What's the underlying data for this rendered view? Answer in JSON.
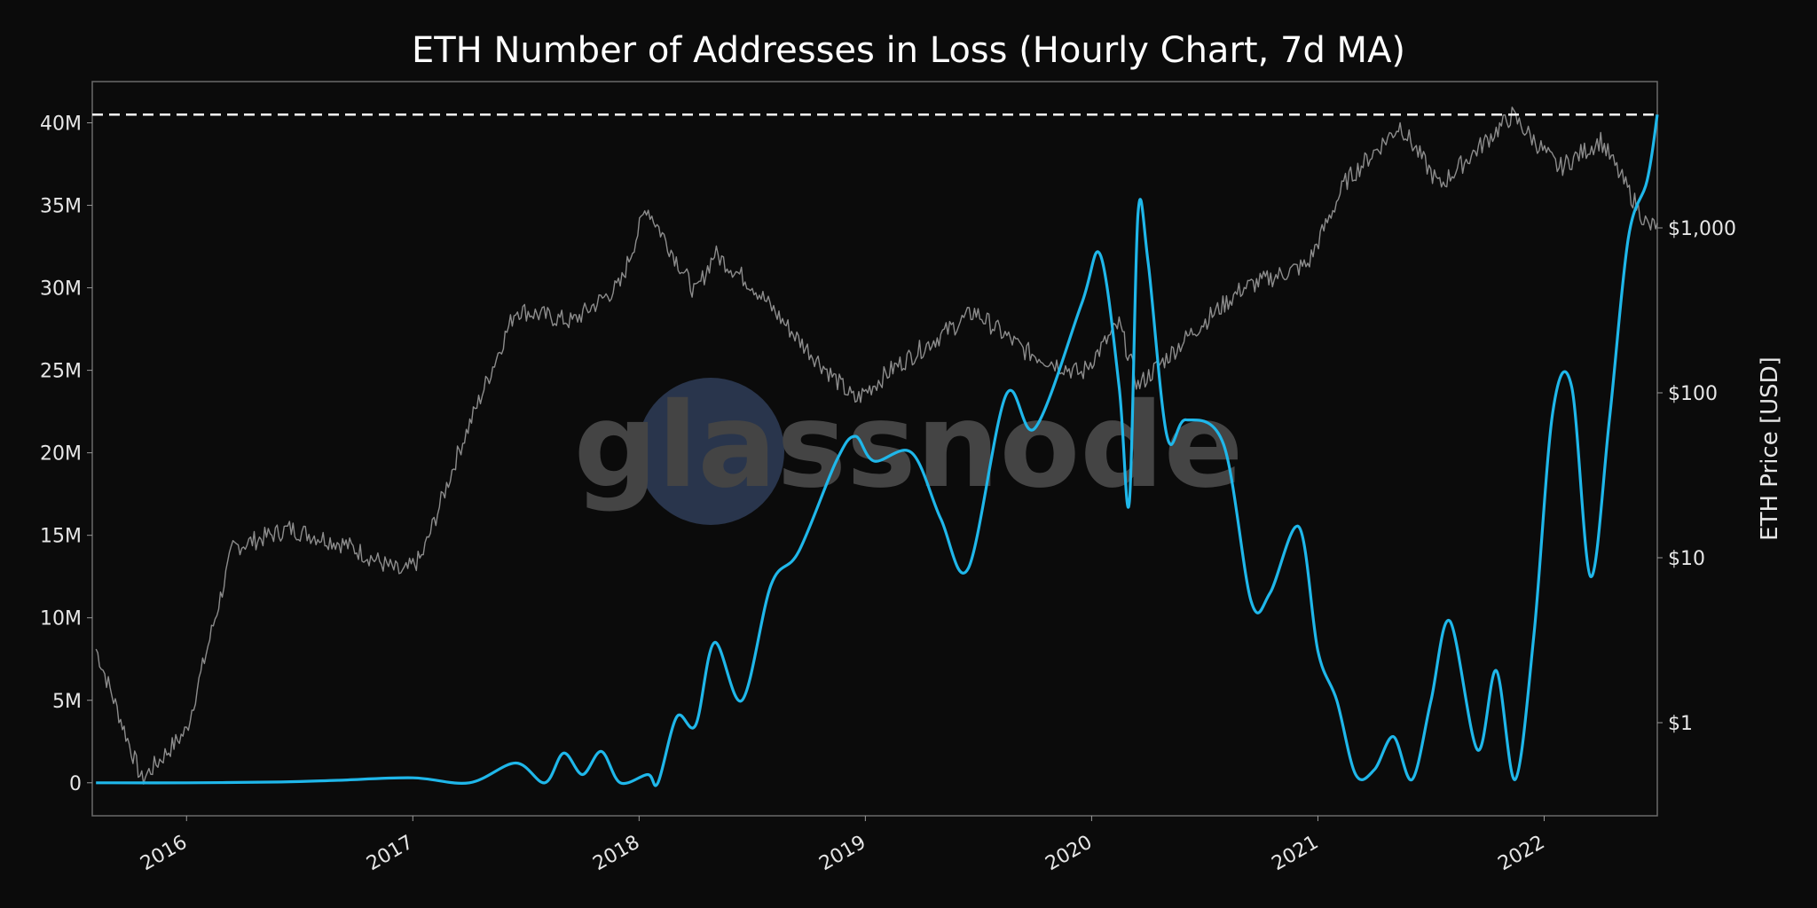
{
  "chart_data": {
    "type": "line",
    "title": "ETH Number of Addresses in Loss (Hourly Chart, 7d MA)",
    "watermark": "glassnode",
    "xlabel": "",
    "ylabel": "",
    "y2label": "ETH Price [USD]",
    "x_ticks": [
      "2016",
      "2017",
      "2018",
      "2019",
      "2020",
      "2021",
      "2022"
    ],
    "y_ticks": [
      "0",
      "5M",
      "10M",
      "15M",
      "20M",
      "25M",
      "30M",
      "35M",
      "40M"
    ],
    "y2_ticks": [
      "$1",
      "$10",
      "$100",
      "$1,000"
    ],
    "ylim": [
      -2000000,
      42500000
    ],
    "y2_scale": "log",
    "xlim": [
      "2015-08",
      "2022-07"
    ],
    "grid": false,
    "reference_line": {
      "value": 40500000,
      "style": "dashed",
      "color": "#ffffff"
    },
    "series": [
      {
        "role": "addresses_in_loss",
        "color": "#1fb7ea",
        "axis": "left",
        "points": [
          [
            "2015-08-07",
            0
          ],
          [
            "2016-01-01",
            0
          ],
          [
            "2016-06-01",
            50000
          ],
          [
            "2016-09-01",
            150000
          ],
          [
            "2017-01-01",
            300000
          ],
          [
            "2017-04-01",
            0
          ],
          [
            "2017-06-15",
            1200000
          ],
          [
            "2017-08-01",
            0
          ],
          [
            "2017-09-01",
            1800000
          ],
          [
            "2017-10-01",
            500000
          ],
          [
            "2017-11-01",
            1900000
          ],
          [
            "2017-12-01",
            0
          ],
          [
            "2018-01-15",
            500000
          ],
          [
            "2018-02-01",
            0
          ],
          [
            "2018-03-01",
            4000000
          ],
          [
            "2018-04-01",
            3500000
          ],
          [
            "2018-05-01",
            8500000
          ],
          [
            "2018-06-15",
            5000000
          ],
          [
            "2018-08-01",
            12000000
          ],
          [
            "2018-09-15",
            14000000
          ],
          [
            "2018-11-15",
            19500000
          ],
          [
            "2018-12-15",
            21000000
          ],
          [
            "2019-01-15",
            19500000
          ],
          [
            "2019-03-15",
            20000000
          ],
          [
            "2019-05-01",
            16000000
          ],
          [
            "2019-06-15",
            13000000
          ],
          [
            "2019-08-15",
            23500000
          ],
          [
            "2019-10-01",
            21500000
          ],
          [
            "2019-12-15",
            29000000
          ],
          [
            "2020-01-15",
            32000000
          ],
          [
            "2020-02-15",
            24000000
          ],
          [
            "2020-03-01",
            17000000
          ],
          [
            "2020-03-15",
            34500000
          ],
          [
            "2020-04-01",
            31500000
          ],
          [
            "2020-05-01",
            21000000
          ],
          [
            "2020-06-01",
            22000000
          ],
          [
            "2020-08-01",
            20500000
          ],
          [
            "2020-09-15",
            11000000
          ],
          [
            "2020-10-15",
            11500000
          ],
          [
            "2020-12-01",
            15500000
          ],
          [
            "2021-01-01",
            8000000
          ],
          [
            "2021-02-01",
            5000000
          ],
          [
            "2021-03-01",
            500000
          ],
          [
            "2021-04-01",
            800000
          ],
          [
            "2021-05-01",
            2800000
          ],
          [
            "2021-06-01",
            200000
          ],
          [
            "2021-07-01",
            5000000
          ],
          [
            "2021-08-01",
            9800000
          ],
          [
            "2021-09-15",
            2000000
          ],
          [
            "2021-10-15",
            6800000
          ],
          [
            "2021-11-15",
            200000
          ],
          [
            "2021-12-15",
            9000000
          ],
          [
            "2022-01-15",
            22500000
          ],
          [
            "2022-02-15",
            24000000
          ],
          [
            "2022-03-15",
            12500000
          ],
          [
            "2022-04-15",
            22000000
          ],
          [
            "2022-05-15",
            33000000
          ],
          [
            "2022-06-15",
            36500000
          ],
          [
            "2022-07-01",
            40500000
          ]
        ]
      },
      {
        "role": "eth_price_usd",
        "color": "#8c8c8c",
        "axis": "right",
        "points": [
          [
            "2015-08-07",
            2.8
          ],
          [
            "2015-10-20",
            0.45
          ],
          [
            "2016-01-01",
            0.9
          ],
          [
            "2016-03-15",
            11.5
          ],
          [
            "2016-06-15",
            15
          ],
          [
            "2016-09-15",
            12
          ],
          [
            "2016-12-15",
            8
          ],
          [
            "2017-01-15",
            10
          ],
          [
            "2017-03-15",
            45
          ],
          [
            "2017-06-15",
            320
          ],
          [
            "2017-09-15",
            270
          ],
          [
            "2017-12-01",
            450
          ],
          [
            "2018-01-13",
            1350
          ],
          [
            "2018-04-01",
            400
          ],
          [
            "2018-05-01",
            700
          ],
          [
            "2018-07-01",
            450
          ],
          [
            "2018-09-15",
            210
          ],
          [
            "2018-12-15",
            90
          ],
          [
            "2019-02-15",
            140
          ],
          [
            "2019-06-25",
            310
          ],
          [
            "2019-09-15",
            180
          ],
          [
            "2019-12-15",
            130
          ],
          [
            "2020-02-15",
            260
          ],
          [
            "2020-03-15",
            110
          ],
          [
            "2020-06-15",
            240
          ],
          [
            "2020-09-01",
            430
          ],
          [
            "2020-12-15",
            600
          ],
          [
            "2021-02-15",
            1900
          ],
          [
            "2021-05-12",
            4200
          ],
          [
            "2021-07-15",
            1800
          ],
          [
            "2021-11-10",
            4800
          ],
          [
            "2022-01-25",
            2300
          ],
          [
            "2022-04-01",
            3400
          ],
          [
            "2022-06-18",
            1000
          ],
          [
            "2022-07-01",
            1070
          ]
        ]
      }
    ]
  }
}
